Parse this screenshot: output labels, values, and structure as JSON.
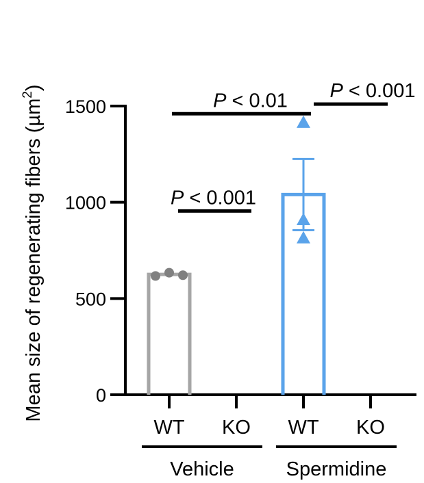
{
  "chart_data": {
    "type": "bar",
    "title": "",
    "xlabel": "",
    "ylabel": "Mean size of regenerating fibers (µm",
    "ylabel_sup": "2",
    "ylabel_close": ")",
    "ylim": [
      0,
      1500
    ],
    "yticks": [
      0,
      500,
      1000,
      1500
    ],
    "categories": [
      "WT",
      "KO",
      "WT",
      "KO"
    ],
    "groups": [
      {
        "label": "Vehicle",
        "categories": [
          0,
          1
        ]
      },
      {
        "label": "Spermidine",
        "categories": [
          2,
          3
        ]
      }
    ],
    "bars": [
      {
        "category": "WT",
        "group": "Vehicle",
        "value": 625,
        "error": null,
        "color": "#a6a6a6",
        "marker": "circle",
        "points": [
          617,
          634,
          621
        ]
      },
      {
        "category": "KO",
        "group": "Vehicle",
        "value": null,
        "error": null,
        "color": "#a6a6a6",
        "marker": "none",
        "points": []
      },
      {
        "category": "WT",
        "group": "Spermidine",
        "value": 1040,
        "error": 185,
        "color": "#5aa3ea",
        "marker": "triangle",
        "points": [
          1415,
          910,
          815
        ]
      },
      {
        "category": "KO",
        "group": "Spermidine",
        "value": null,
        "error": null,
        "color": "#5aa3ea",
        "marker": "none",
        "points": []
      }
    ],
    "annotations": [
      {
        "text": "P < 0.001",
        "from": 0,
        "to": 1,
        "y": 955
      },
      {
        "text": "P < 0.01",
        "from": 0,
        "to": 2,
        "y": 1460
      },
      {
        "text": "P < 0.001",
        "from": 2,
        "to": 3,
        "y": 1510
      }
    ]
  }
}
